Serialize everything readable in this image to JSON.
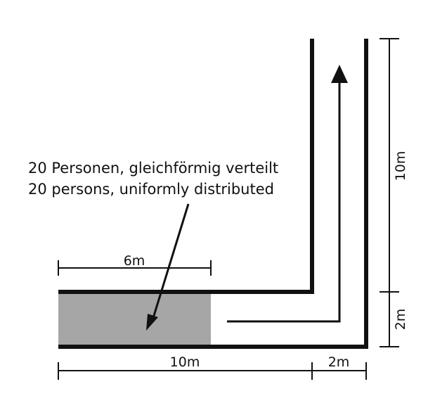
{
  "annotation": {
    "line_de": "20 Personen, gleichförmig verteilt",
    "line_en": "20 persons, uniformly distributed"
  },
  "dimensions": {
    "room_width": "6m",
    "corridor_length_bottom": "10m",
    "corridor_width_bottom": "2m",
    "corridor_length_vertical": "10m",
    "corridor_width_vertical": "2m"
  },
  "colors": {
    "wall": "#111111",
    "occupied_area": "#a6a6a6"
  }
}
